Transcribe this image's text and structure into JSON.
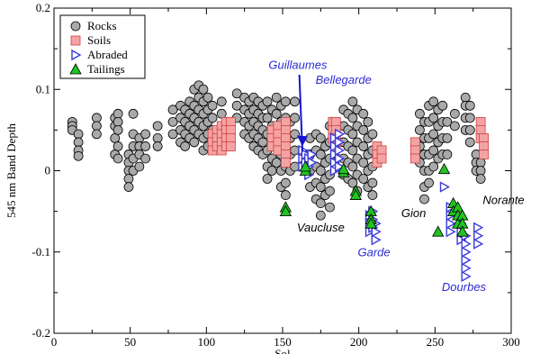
{
  "chart_data": {
    "type": "scatter",
    "xlabel": "Sol",
    "ylabel": "545 nm Band Depth",
    "xlim": [
      0,
      300
    ],
    "ylim": [
      -0.2,
      0.2
    ],
    "xticks": [
      0,
      50,
      100,
      150,
      200,
      250,
      300
    ],
    "yticks": [
      -0.2,
      -0.1,
      0,
      0.1,
      0.2
    ],
    "grid": false,
    "legend_position": "top-left",
    "series": [
      {
        "name": "Rocks",
        "color": "#a9a9a9",
        "marker": "circle",
        "clusters": [
          {
            "sol": 12,
            "values": [
              0.06,
              0.055,
              0.05
            ]
          },
          {
            "sol": 16,
            "values": [
              0.045,
              0.035,
              0.025,
              0.018
            ]
          },
          {
            "sol": 28,
            "values": [
              0.065,
              0.055,
              0.045
            ]
          },
          {
            "sol": 40,
            "values": [
              0.065,
              0.055,
              0.04,
              0.02
            ]
          },
          {
            "sol": 42,
            "values": [
              0.07,
              0.06,
              0.05,
              0.03,
              0.015
            ]
          },
          {
            "sol": 49,
            "values": [
              0.02,
              0.01,
              0.0,
              -0.01,
              -0.02
            ]
          },
          {
            "sol": 52,
            "values": [
              0.07,
              0.045,
              0.03,
              0.015,
              0.0
            ]
          },
          {
            "sol": 56,
            "values": [
              0.04,
              0.03,
              0.02,
              0.005
            ]
          },
          {
            "sol": 60,
            "values": [
              0.045,
              0.03,
              0.015
            ]
          },
          {
            "sol": 68,
            "values": [
              0.055,
              0.04,
              0.03
            ]
          },
          {
            "sol": 78,
            "values": [
              0.075,
              0.06,
              0.045
            ]
          },
          {
            "sol": 83,
            "values": [
              0.08,
              0.065,
              0.05,
              0.035
            ]
          },
          {
            "sol": 86,
            "values": [
              0.075,
              0.06,
              0.045,
              0.03
            ]
          },
          {
            "sol": 89,
            "values": [
              0.085,
              0.07,
              0.055,
              0.04
            ]
          },
          {
            "sol": 92,
            "values": [
              0.1,
              0.08,
              0.065,
              0.05,
              0.035
            ]
          },
          {
            "sol": 95,
            "values": [
              0.105,
              0.09,
              0.075,
              0.06,
              0.045
            ]
          },
          {
            "sol": 98,
            "values": [
              0.1,
              0.085,
              0.07,
              0.055,
              0.04,
              0.025
            ]
          },
          {
            "sol": 101,
            "values": [
              0.09,
              0.075,
              0.06,
              0.045,
              0.03
            ]
          },
          {
            "sol": 104,
            "values": [
              0.08,
              0.065,
              0.05
            ]
          },
          {
            "sol": 110,
            "values": [
              0.085,
              0.07
            ]
          },
          {
            "sol": 120,
            "values": [
              0.095,
              0.08,
              0.065
            ]
          },
          {
            "sol": 125,
            "values": [
              0.09,
              0.075,
              0.06,
              0.045
            ]
          },
          {
            "sol": 128,
            "values": [
              0.085,
              0.07,
              0.055,
              0.04
            ]
          },
          {
            "sol": 131,
            "values": [
              0.09,
              0.075,
              0.06,
              0.045,
              0.03
            ]
          },
          {
            "sol": 134,
            "values": [
              0.085,
              0.07,
              0.055,
              0.04,
              0.025
            ]
          },
          {
            "sol": 137,
            "values": [
              0.08,
              0.065,
              0.05,
              0.035,
              0.02
            ]
          },
          {
            "sol": 140,
            "values": [
              0.085,
              0.065,
              0.045,
              0.025,
              0.005,
              -0.01
            ]
          },
          {
            "sol": 143,
            "values": [
              0.075,
              0.055,
              0.035,
              0.015,
              0.0
            ]
          },
          {
            "sol": 146,
            "values": [
              0.09,
              0.07,
              0.05,
              0.03,
              0.01
            ]
          },
          {
            "sol": 149,
            "values": [
              0.08,
              0.06,
              0.04,
              0.02,
              0.0,
              -0.02
            ]
          },
          {
            "sol": 152,
            "values": [
              0.085,
              0.065,
              0.045,
              0.025,
              0.005,
              -0.015,
              -0.03
            ]
          },
          {
            "sol": 155,
            "values": [
              0.06,
              0.04,
              0.02,
              0.0
            ]
          },
          {
            "sol": 158,
            "values": [
              0.085,
              0.065,
              0.045,
              0.025,
              0.005
            ]
          },
          {
            "sol": 168,
            "values": [
              0.04,
              0.02,
              0.0,
              -0.02
            ]
          },
          {
            "sol": 172,
            "values": [
              0.045,
              0.025,
              0.005,
              -0.015,
              -0.035
            ]
          },
          {
            "sol": 175,
            "values": [
              0.04,
              0.02,
              0.0,
              -0.02,
              -0.04,
              -0.055
            ]
          },
          {
            "sol": 178,
            "values": [
              0.03,
              0.01,
              -0.01,
              -0.03
            ]
          },
          {
            "sol": 181,
            "values": [
              0.055,
              0.035,
              0.015,
              -0.005,
              -0.025,
              -0.045
            ]
          },
          {
            "sol": 190,
            "values": [
              0.075,
              0.055,
              0.035,
              0.015,
              -0.005
            ]
          },
          {
            "sol": 193,
            "values": [
              0.07,
              0.05,
              0.03,
              0.01,
              -0.01
            ]
          },
          {
            "sol": 196,
            "values": [
              0.085,
              0.065,
              0.045,
              0.025,
              0.005,
              -0.015
            ]
          },
          {
            "sol": 199,
            "values": [
              0.075,
              0.055,
              0.035,
              0.015,
              -0.005,
              -0.025
            ]
          },
          {
            "sol": 203,
            "values": [
              0.07,
              0.05,
              0.03,
              0.01,
              -0.01
            ]
          },
          {
            "sol": 206,
            "values": [
              0.06,
              0.04,
              0.02,
              0.0,
              -0.02
            ]
          },
          {
            "sol": 209,
            "values": [
              0.045,
              0.025,
              0.005,
              -0.015,
              -0.03
            ]
          },
          {
            "sol": 240,
            "values": [
              0.07,
              0.05,
              0.03,
              0.01
            ]
          },
          {
            "sol": 243,
            "values": [
              0.06,
              0.04,
              0.02,
              0.0,
              -0.02,
              -0.035
            ]
          },
          {
            "sol": 246,
            "values": [
              0.08,
              0.06,
              0.04,
              0.02,
              0.0,
              -0.015
            ]
          },
          {
            "sol": 249,
            "values": [
              0.085,
              0.065,
              0.045,
              0.025,
              0.005
            ]
          },
          {
            "sol": 252,
            "values": [
              0.075,
              0.055,
              0.035,
              0.015
            ]
          },
          {
            "sol": 255,
            "values": [
              0.08,
              0.06,
              0.04,
              0.02
            ]
          },
          {
            "sol": 258,
            "values": [
              0.06,
              0.04,
              0.02
            ]
          },
          {
            "sol": 263,
            "values": [
              0.07,
              0.055
            ]
          },
          {
            "sol": 270,
            "values": [
              0.09,
              0.08,
              0.065,
              0.05
            ]
          },
          {
            "sol": 273,
            "values": [
              0.08,
              0.065,
              0.05,
              0.035
            ]
          },
          {
            "sol": 277,
            "values": [
              0.02,
              0.01,
              0.0
            ]
          },
          {
            "sol": 280,
            "values": [
              0.01,
              0.0,
              -0.01
            ]
          }
        ]
      },
      {
        "name": "Soils",
        "color": "#f4a3a3",
        "marker": "square",
        "clusters": [
          {
            "sol": 104,
            "values": [
              0.045,
              0.035,
              0.025
            ]
          },
          {
            "sol": 107,
            "values": [
              0.05,
              0.04,
              0.03
            ]
          },
          {
            "sol": 110,
            "values": [
              0.055,
              0.045,
              0.035,
              0.025
            ]
          },
          {
            "sol": 113,
            "values": [
              0.06,
              0.05,
              0.04,
              0.03
            ]
          },
          {
            "sol": 116,
            "values": [
              0.06,
              0.05,
              0.04,
              0.03
            ]
          },
          {
            "sol": 143,
            "values": [
              0.05,
              0.04,
              0.03
            ]
          },
          {
            "sol": 147,
            "values": [
              0.055,
              0.045,
              0.035,
              0.025
            ]
          },
          {
            "sol": 152,
            "values": [
              0.06,
              0.05,
              0.04,
              0.03,
              0.02,
              0.01
            ]
          },
          {
            "sol": 183,
            "values": [
              0.06,
              0.05,
              0.04
            ]
          },
          {
            "sol": 185,
            "values": [
              0.06,
              0.05,
              0.04,
              0.03
            ]
          },
          {
            "sol": 212,
            "values": [
              0.03,
              0.02,
              0.01
            ]
          },
          {
            "sol": 215,
            "values": [
              0.025,
              0.015
            ]
          },
          {
            "sol": 237,
            "values": [
              0.035,
              0.025,
              0.015
            ]
          },
          {
            "sol": 280,
            "values": [
              0.06,
              0.05,
              0.04
            ]
          },
          {
            "sol": 282,
            "values": [
              0.04,
              0.03,
              0.02
            ]
          }
        ]
      },
      {
        "name": "Abraded",
        "color": "#3a3adb",
        "marker": "triangle-right",
        "clusters": [
          {
            "sol": 163,
            "values": [
              0.025,
              0.015,
              0.005
            ]
          },
          {
            "sol": 165,
            "values": [
              0.02,
              0.01,
              0.0
            ]
          },
          {
            "sol": 167,
            "values": [
              0.015,
              0.005,
              -0.005
            ]
          },
          {
            "sol": 169,
            "values": [
              0.02,
              0.01
            ]
          },
          {
            "sol": 184,
            "values": [
              0.04,
              0.03,
              0.02,
              0.01,
              0.0
            ]
          },
          {
            "sol": 187,
            "values": [
              0.045,
              0.035,
              0.025,
              0.015,
              0.005
            ]
          },
          {
            "sol": 207,
            "values": [
              -0.055,
              -0.065,
              -0.075
            ]
          },
          {
            "sol": 209,
            "values": [
              -0.05,
              -0.06,
              -0.07
            ]
          },
          {
            "sol": 211,
            "values": [
              -0.065,
              -0.075,
              -0.085
            ]
          },
          {
            "sol": 256,
            "values": [
              -0.02
            ]
          },
          {
            "sol": 260,
            "values": [
              -0.045,
              -0.055,
              -0.065,
              -0.075
            ]
          },
          {
            "sol": 267,
            "values": [
              -0.065,
              -0.075,
              -0.085
            ]
          },
          {
            "sol": 270,
            "values": [
              -0.08,
              -0.09,
              -0.1,
              -0.11,
              -0.12,
              -0.13
            ]
          },
          {
            "sol": 278,
            "values": [
              -0.07,
              -0.08,
              -0.09
            ]
          }
        ]
      },
      {
        "name": "Tailings",
        "color": "#22c322",
        "marker": "triangle-up",
        "clusters": [
          {
            "sol": 152,
            "values": [
              -0.045,
              -0.05
            ]
          },
          {
            "sol": 165,
            "values": [
              0.0,
              0.005
            ]
          },
          {
            "sol": 190,
            "values": [
              -0.002,
              0.002
            ]
          },
          {
            "sol": 198,
            "values": [
              -0.025,
              -0.03
            ]
          },
          {
            "sol": 208,
            "values": [
              -0.05,
              -0.06,
              -0.065
            ]
          },
          {
            "sol": 252,
            "values": [
              -0.075
            ]
          },
          {
            "sol": 256,
            "values": [
              0.002
            ]
          },
          {
            "sol": 262,
            "values": [
              -0.04,
              -0.05
            ]
          },
          {
            "sol": 265,
            "values": [
              -0.045,
              -0.055,
              -0.065
            ]
          },
          {
            "sol": 268,
            "values": [
              -0.055,
              -0.065,
              -0.075
            ]
          }
        ]
      }
    ],
    "annotations": [
      {
        "text": "Guillaumes",
        "color": "#2b2bd6",
        "x": 160,
        "y": 0.125
      },
      {
        "text": "Bellegarde",
        "color": "#2b2bd6",
        "x": 190,
        "y": 0.107
      },
      {
        "text": "Vaucluse",
        "color": "#000000",
        "x": 175,
        "y": -0.075
      },
      {
        "text": "Garde",
        "color": "#2b2bd6",
        "x": 210,
        "y": -0.105
      },
      {
        "text": "Gion",
        "color": "#000000",
        "x": 236,
        "y": -0.057
      },
      {
        "text": "Norante",
        "color": "#000000",
        "x": 295,
        "y": -0.041
      },
      {
        "text": "Dourbes",
        "color": "#2b2bd6",
        "x": 269,
        "y": -0.148
      }
    ],
    "arrow": {
      "from": [
        161,
        0.118
      ],
      "to": [
        163,
        0.03
      ],
      "color": "#1515d0"
    }
  }
}
